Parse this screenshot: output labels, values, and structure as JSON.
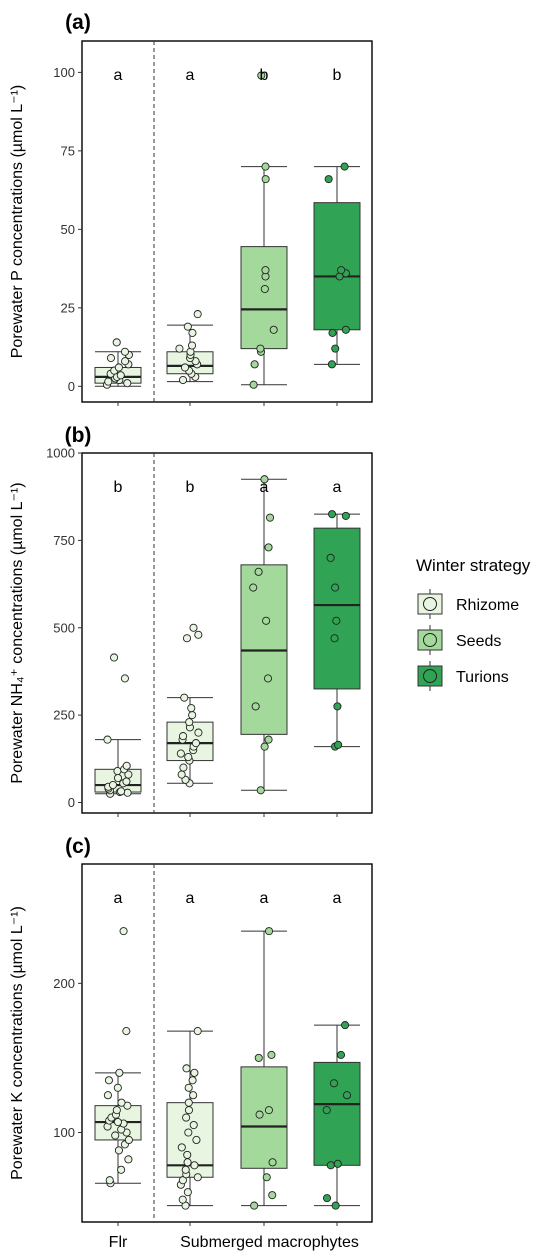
{
  "colors": {
    "Rhizome": "#e8f5e1",
    "Seeds": "#a3d99a",
    "Turions": "#31a354",
    "frame": "#000000",
    "grid_axis": "#333333"
  },
  "categories": [
    "Flr",
    "",
    "",
    ""
  ],
  "group_label": "Submerged macrophytes",
  "legend": {
    "title": "Winter strategy",
    "items": [
      "Rhizome",
      "Seeds",
      "Turions"
    ]
  },
  "chart_data": [
    {
      "type": "box",
      "panel": "(a)",
      "ylabel": "Porewater P concentrations (µmol L⁻¹)",
      "ylim": [
        -5,
        110
      ],
      "yticks": [
        0,
        25,
        50,
        75,
        100
      ],
      "letters": [
        "a",
        "a",
        "b",
        "b"
      ],
      "boxes": [
        {
          "group": "Rhizome",
          "min": 0,
          "q1": 1,
          "median": 3,
          "q3": 6,
          "max": 11
        },
        {
          "group": "Rhizome",
          "min": 1.5,
          "q1": 4,
          "median": 6.5,
          "q3": 11,
          "max": 19.5
        },
        {
          "group": "Seeds",
          "min": 0.5,
          "q1": 12,
          "median": 24.5,
          "q3": 44.5,
          "max": 70
        },
        {
          "group": "Turions",
          "min": 7,
          "q1": 18,
          "median": 35,
          "q3": 58.5,
          "max": 70
        }
      ],
      "points": [
        [
          0.5,
          1,
          1.5,
          2,
          2.5,
          3,
          3.5,
          4,
          5,
          6,
          7,
          8,
          9,
          10,
          11,
          14
        ],
        [
          2,
          3,
          4,
          5,
          6,
          7,
          8,
          9,
          10,
          11,
          12,
          13,
          17,
          19,
          23
        ],
        [
          0.5,
          7,
          11,
          12,
          18,
          31,
          35,
          37,
          66,
          70,
          99
        ],
        [
          7,
          12,
          17,
          18,
          35,
          36,
          37,
          66,
          70
        ]
      ]
    },
    {
      "type": "box",
      "panel": "(b)",
      "ylabel": "Porewater NH₄⁺ concentrations (µmol L⁻¹)",
      "ylim": [
        -30,
        1000
      ],
      "yticks": [
        0,
        250,
        500,
        750,
        1000
      ],
      "letters": [
        "b",
        "b",
        "a",
        "a"
      ],
      "boxes": [
        {
          "group": "Rhizome",
          "min": 25,
          "q1": 30,
          "median": 50,
          "q3": 95,
          "max": 180
        },
        {
          "group": "Rhizome",
          "min": 55,
          "q1": 120,
          "median": 170,
          "q3": 230,
          "max": 300
        },
        {
          "group": "Seeds",
          "min": 35,
          "q1": 195,
          "median": 435,
          "q3": 680,
          "max": 925
        },
        {
          "group": "Turions",
          "min": 160,
          "q1": 325,
          "median": 565,
          "q3": 785,
          "max": 825
        }
      ],
      "points": [
        [
          25,
          28,
          30,
          32,
          35,
          40,
          45,
          50,
          55,
          60,
          70,
          80,
          90,
          95,
          105,
          180,
          355,
          415
        ],
        [
          55,
          65,
          80,
          100,
          120,
          130,
          140,
          150,
          160,
          170,
          180,
          190,
          200,
          215,
          230,
          250,
          270,
          300,
          470,
          480,
          500
        ],
        [
          35,
          160,
          180,
          275,
          355,
          520,
          615,
          660,
          730,
          815,
          925
        ],
        [
          160,
          165,
          275,
          470,
          520,
          615,
          700,
          820,
          825
        ]
      ]
    },
    {
      "type": "box",
      "panel": "(c)",
      "ylabel": "Porewater K concentrations (µmol L⁻¹)",
      "ylim": [
        40,
        280
      ],
      "yticks": [
        100,
        200
      ],
      "letters": [
        "a",
        "a",
        "a",
        "a"
      ],
      "boxes": [
        {
          "group": "Rhizome",
          "min": 66,
          "q1": 95,
          "median": 107,
          "q3": 118,
          "max": 140
        },
        {
          "group": "Rhizome",
          "min": 51,
          "q1": 70,
          "median": 78,
          "q3": 120,
          "max": 168
        },
        {
          "group": "Seeds",
          "min": 51,
          "q1": 76,
          "median": 104,
          "q3": 144,
          "max": 235
        },
        {
          "group": "Turions",
          "min": 51,
          "q1": 78,
          "median": 119,
          "q3": 147,
          "max": 172
        }
      ],
      "points": [
        [
          66,
          68,
          75,
          82,
          88,
          92,
          95,
          98,
          100,
          102,
          104,
          106,
          107,
          108,
          110,
          112,
          115,
          118,
          120,
          125,
          130,
          135,
          140,
          168,
          235
        ],
        [
          51,
          55,
          60,
          65,
          68,
          70,
          72,
          75,
          78,
          80,
          85,
          90,
          95,
          100,
          105,
          110,
          115,
          120,
          125,
          130,
          135,
          140,
          143,
          168
        ],
        [
          51,
          58,
          70,
          80,
          112,
          115,
          150,
          152,
          235
        ],
        [
          51,
          56,
          78,
          79,
          115,
          125,
          133,
          152,
          172
        ]
      ]
    }
  ]
}
